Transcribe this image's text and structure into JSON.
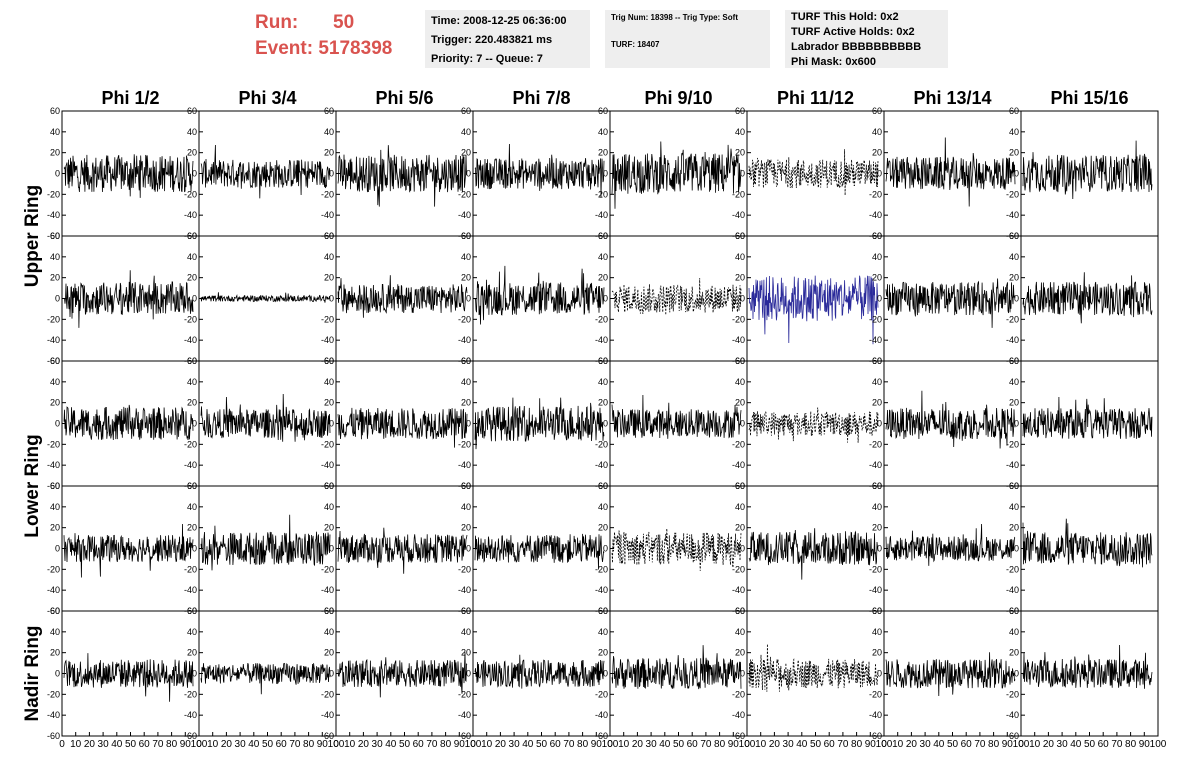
{
  "header": {
    "run_label": "Run:",
    "run_value": "50",
    "event_label": "Event:",
    "event_value": "5178398"
  },
  "time_box": {
    "time": "Time: 2008-12-25 06:36:00",
    "trigger": "Trigger: 220.483821 ms",
    "priority": "Priority: 7 -- Queue: 7"
  },
  "trig_box": {
    "trig": "Trig Num: 18398 -- Trig Type: Soft",
    "turf": "TURF: 18407"
  },
  "turf_box": {
    "this_hold": "TURF This Hold: 0x2",
    "active_holds": "TURF Active Holds: 0x2",
    "labrador": "Labrador BBBBBBBBBB",
    "phi_mask": "Phi Mask: 0x600"
  },
  "chart_data": {
    "type": "line",
    "columns": [
      "Phi 1/2",
      "Phi 3/4",
      "Phi 5/6",
      "Phi 7/8",
      "Phi 9/10",
      "Phi 11/12",
      "Phi 13/14",
      "Phi 15/16"
    ],
    "ring_labels": [
      {
        "text": "Upper Ring",
        "rows": [
          0,
          1
        ]
      },
      {
        "text": "Lower Ring",
        "rows": [
          2,
          3
        ]
      },
      {
        "text": "Nadir Ring",
        "rows": [
          4,
          4
        ]
      }
    ],
    "rows": 5,
    "xlim": [
      0,
      100
    ],
    "ylim": [
      -60,
      60
    ],
    "xticks": [
      0,
      10,
      20,
      30,
      40,
      50,
      60,
      70,
      80,
      90,
      100
    ],
    "yticks": [
      60,
      40,
      20,
      0,
      -20,
      -40,
      -60
    ],
    "amplitude": [
      [
        18,
        14,
        18,
        15,
        20,
        14,
        16,
        18
      ],
      [
        16,
        3,
        14,
        16,
        14,
        22,
        16,
        16
      ],
      [
        16,
        14,
        15,
        17,
        14,
        12,
        15,
        15
      ],
      [
        13,
        16,
        14,
        14,
        16,
        16,
        12,
        16
      ],
      [
        14,
        10,
        13,
        13,
        15,
        14,
        14,
        14
      ]
    ],
    "styles": [
      [
        "solid",
        "solid",
        "solid",
        "solid",
        "solid",
        "dashed",
        "solid",
        "solid"
      ],
      [
        "solid",
        "solid",
        "solid",
        "solid",
        "dashed",
        "blue",
        "solid",
        "solid"
      ],
      [
        "solid",
        "solid",
        "solid",
        "solid",
        "solid",
        "dashed",
        "solid",
        "solid"
      ],
      [
        "solid",
        "solid",
        "solid",
        "solid",
        "dashed",
        "solid",
        "solid",
        "solid"
      ],
      [
        "solid",
        "solid",
        "solid",
        "solid",
        "solid",
        "dashed",
        "solid",
        "solid"
      ]
    ],
    "colors": {
      "trace": "#000000",
      "highlight": "#2a2a9a",
      "run_text": "#d9534f",
      "box_bg": "#eeeeee"
    }
  }
}
